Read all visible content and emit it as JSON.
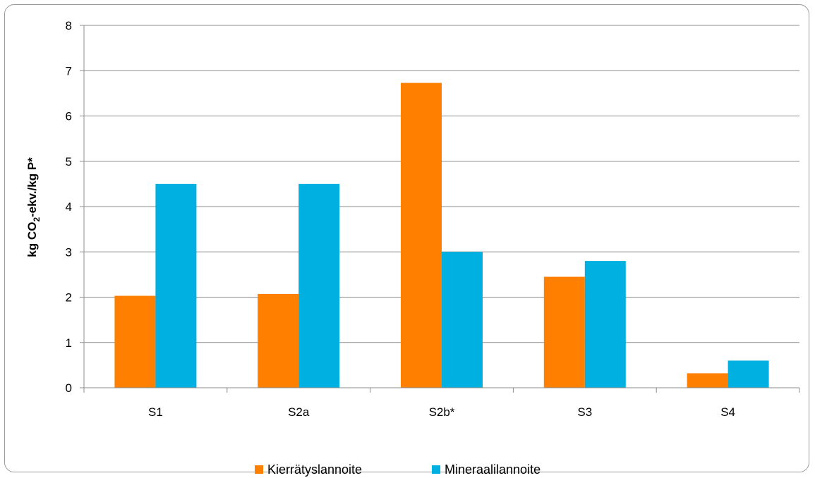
{
  "chart_data": {
    "type": "bar",
    "categories": [
      "S1",
      "S2a",
      "S2b*",
      "S3",
      "S4"
    ],
    "series": [
      {
        "name": "Kierrätyslannoite",
        "values": [
          2.03,
          2.07,
          6.73,
          2.45,
          0.32
        ],
        "color": "#ff8000"
      },
      {
        "name": "Mineraalilannoite",
        "values": [
          4.5,
          4.5,
          3.0,
          2.8,
          0.6
        ],
        "color": "#00b0e0"
      }
    ],
    "title": "",
    "xlabel": "",
    "ylabel": {
      "prefix": "kg CO",
      "subscript": "2",
      "suffix": "-ekv./kg P*"
    },
    "ylim": [
      0,
      8
    ],
    "yticks": [
      0,
      1,
      2,
      3,
      4,
      5,
      6,
      7,
      8
    ],
    "grid": true,
    "legend": "bottom",
    "colors": {
      "gridline": "#8c8c8c",
      "axis": "#8c8c8c",
      "border": "#9a9a9a"
    }
  }
}
